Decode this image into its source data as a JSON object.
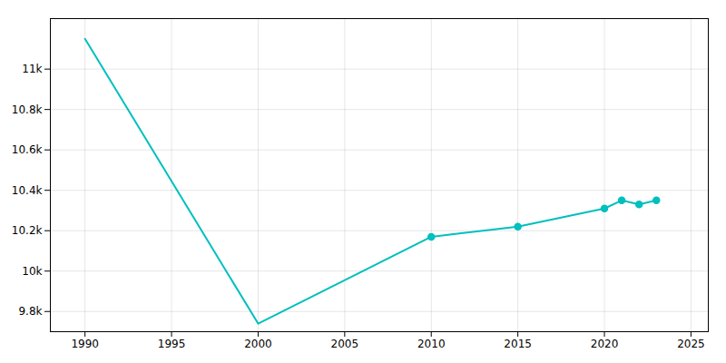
{
  "chart_data": {
    "type": "line",
    "x": [
      1990,
      2000,
      2010,
      2015,
      2020,
      2021,
      2022,
      2023
    ],
    "series": [
      {
        "color": "#00BFBF",
        "values": [
          11150,
          9740,
          10170,
          10220,
          10310,
          10350,
          10330,
          10350
        ]
      },
      {
        "type": "scatter",
        "marker": "o",
        "color": "#00BFBF",
        "x": [
          2010,
          2015,
          2020,
          2021,
          2022,
          2023
        ],
        "values": [
          10170,
          10220,
          10310,
          10350,
          10330,
          10350
        ]
      }
    ],
    "xlim": [
      1988,
      2026
    ],
    "ylim": [
      9700,
      11250
    ],
    "xticks": [
      1990,
      1995,
      2000,
      2005,
      2010,
      2015,
      2020,
      2025
    ],
    "yticks": [
      {
        "value": 9800,
        "label": "9.8k"
      },
      {
        "value": 10000,
        "label": "10k"
      },
      {
        "value": 10200,
        "label": "10.2k"
      },
      {
        "value": 10400,
        "label": "10.4k"
      },
      {
        "value": 10600,
        "label": "10.6k"
      },
      {
        "value": 10800,
        "label": "10.8k"
      },
      {
        "value": 11000,
        "label": "11k"
      }
    ],
    "grid": true
  }
}
